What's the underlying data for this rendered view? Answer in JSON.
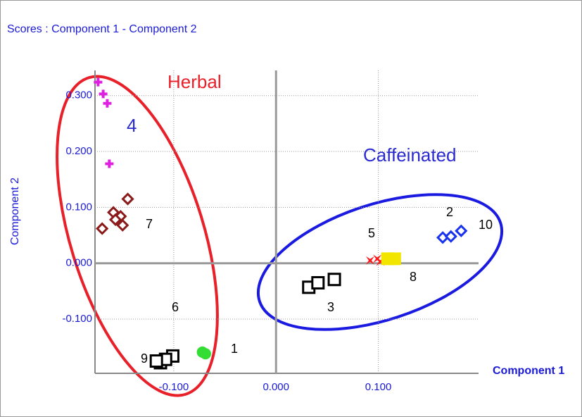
{
  "chart_data": {
    "type": "scatter",
    "title": "Scores : Component  1 - Component  2",
    "x_label": "Component 1",
    "y_label": "Component 2",
    "xlim": [
      -0.177,
      0.198
    ],
    "ylim": [
      -0.197,
      0.345
    ],
    "xticks": [
      {
        "value": -0.1,
        "label": "-0.100"
      },
      {
        "value": 0,
        "label": "0.000"
      },
      {
        "value": 0.1,
        "label": "0.100"
      }
    ],
    "yticks": [
      {
        "value": 0.3,
        "label": "0.300"
      },
      {
        "value": 0.2,
        "label": "0.200"
      },
      {
        "value": 0.1,
        "label": "0.100"
      },
      {
        "value": 0,
        "label": "0.000"
      },
      {
        "value": -0.1,
        "label": "-0.100"
      }
    ],
    "grid": true,
    "series": [
      {
        "color": "#e020e0",
        "marker": "plus",
        "x": [
          -0.174,
          -0.169,
          -0.165,
          -0.163
        ],
        "values": [
          0.324,
          0.303,
          0.286,
          0.178
        ]
      },
      {
        "color": "#8b1a1a",
        "marker": "diamond",
        "x": [
          -0.145,
          -0.159,
          -0.152,
          -0.157,
          -0.15,
          -0.17
        ],
        "values": [
          0.115,
          0.091,
          0.084,
          0.078,
          0.068,
          0.062
        ]
      },
      {
        "color": "#000000",
        "marker": "square",
        "x": [
          -0.113,
          -0.101,
          -0.108,
          -0.117
        ],
        "values": [
          -0.178,
          -0.166,
          -0.172,
          -0.175
        ]
      },
      {
        "color": "#33dd33",
        "marker": "circle",
        "x": [
          -0.072,
          -0.069
        ],
        "values": [
          -0.159,
          -0.162
        ]
      },
      {
        "color": "#000000",
        "marker": "square",
        "x": [
          0.032,
          0.041,
          0.057
        ],
        "values": [
          -0.043,
          -0.035,
          -0.029
        ]
      },
      {
        "color": "#ff1a1a",
        "marker": "cross",
        "x": [
          0.092,
          0.099,
          0.102
        ],
        "values": [
          0.005,
          0.008,
          0.003
        ]
      },
      {
        "color": "#f2e600",
        "marker": "squarefill",
        "x": [
          0.109,
          0.116
        ],
        "values": [
          0.008,
          0.008
        ]
      },
      {
        "color": "#1a33ee",
        "marker": "diamond",
        "x": [
          0.163,
          0.171,
          0.181
        ],
        "values": [
          0.046,
          0.048,
          0.058
        ]
      }
    ],
    "annotations": [
      "Herbal",
      "Caffeinated",
      "4",
      "1",
      "2",
      "3",
      "5",
      "6",
      "7",
      "8",
      "9",
      "10"
    ]
  }
}
